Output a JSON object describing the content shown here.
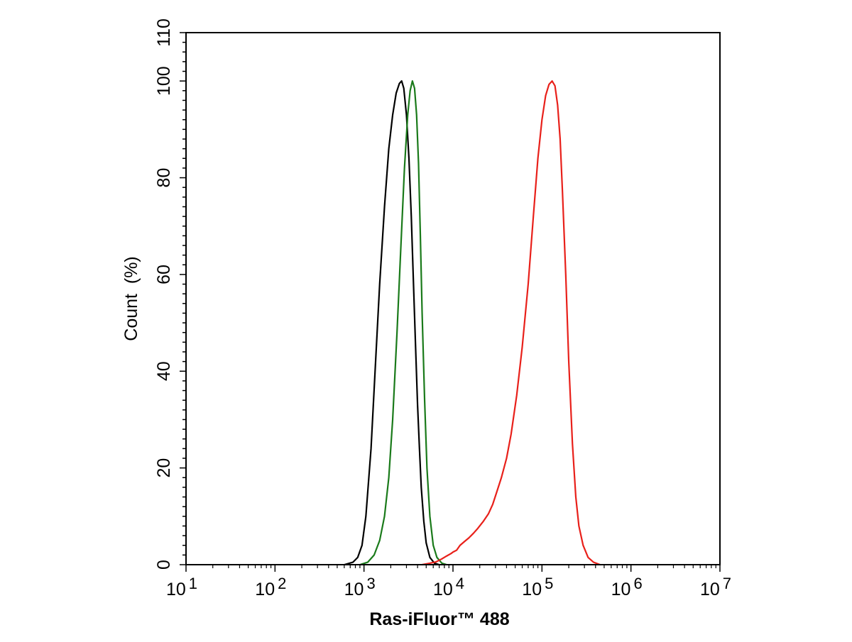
{
  "chart_data": {
    "type": "line",
    "title": "",
    "xlabel": "Ras-iFluor™ 488",
    "ylabel": "Count  (%)",
    "x_scale": "log",
    "xlim": [
      10,
      10000000
    ],
    "ylim": [
      0,
      110
    ],
    "x_ticks": [
      {
        "value": 10,
        "base": "10",
        "exp": "1"
      },
      {
        "value": 100,
        "base": "10",
        "exp": "2"
      },
      {
        "value": 1000,
        "base": "10",
        "exp": "3"
      },
      {
        "value": 10000,
        "base": "10",
        "exp": "4"
      },
      {
        "value": 100000,
        "base": "10",
        "exp": "5"
      },
      {
        "value": 1000000,
        "base": "10",
        "exp": "6"
      },
      {
        "value": 10000000,
        "base": "10",
        "exp": "7"
      }
    ],
    "y_ticks": [
      0,
      20,
      40,
      60,
      80,
      100,
      110
    ],
    "grid": false,
    "legend": "none",
    "series": [
      {
        "color": "#000000",
        "points": [
          [
            600,
            0
          ],
          [
            750,
            0.5
          ],
          [
            850,
            1.5
          ],
          [
            950,
            4
          ],
          [
            1050,
            10
          ],
          [
            1200,
            24
          ],
          [
            1350,
            42
          ],
          [
            1500,
            58
          ],
          [
            1700,
            74
          ],
          [
            1900,
            86
          ],
          [
            2100,
            93
          ],
          [
            2300,
            97.5
          ],
          [
            2500,
            99.5
          ],
          [
            2650,
            100
          ],
          [
            2800,
            98.5
          ],
          [
            3000,
            93
          ],
          [
            3200,
            84
          ],
          [
            3400,
            72
          ],
          [
            3600,
            58
          ],
          [
            3800,
            45
          ],
          [
            4000,
            33
          ],
          [
            4200,
            24
          ],
          [
            4400,
            16
          ],
          [
            4700,
            9
          ],
          [
            5000,
            4.5
          ],
          [
            5500,
            1.5
          ],
          [
            6200,
            0.3
          ],
          [
            7000,
            0
          ]
        ]
      },
      {
        "color": "#1a7a1a",
        "points": [
          [
            900,
            0
          ],
          [
            1100,
            0.5
          ],
          [
            1300,
            2
          ],
          [
            1500,
            5
          ],
          [
            1700,
            10
          ],
          [
            1900,
            18
          ],
          [
            2100,
            30
          ],
          [
            2350,
            48
          ],
          [
            2600,
            66
          ],
          [
            2850,
            82
          ],
          [
            3100,
            93
          ],
          [
            3300,
            98
          ],
          [
            3500,
            100
          ],
          [
            3700,
            98.5
          ],
          [
            3900,
            93
          ],
          [
            4100,
            83
          ],
          [
            4300,
            68
          ],
          [
            4500,
            52
          ],
          [
            4800,
            34
          ],
          [
            5100,
            20
          ],
          [
            5500,
            10
          ],
          [
            6000,
            4
          ],
          [
            6600,
            1.5
          ],
          [
            7500,
            0.3
          ],
          [
            8500,
            0
          ]
        ]
      },
      {
        "color": "#e8201a",
        "points": [
          [
            4500,
            0
          ],
          [
            5500,
            0.3
          ],
          [
            6500,
            0.6
          ],
          [
            7500,
            1.2
          ],
          [
            8500,
            1.8
          ],
          [
            9500,
            2.3
          ],
          [
            10000,
            2.6
          ],
          [
            11000,
            3
          ],
          [
            12000,
            4
          ],
          [
            13500,
            4.8
          ],
          [
            15000,
            5.5
          ],
          [
            17000,
            6.5
          ],
          [
            19000,
            7.5
          ],
          [
            22000,
            9
          ],
          [
            25000,
            10.5
          ],
          [
            28000,
            12.5
          ],
          [
            31000,
            15
          ],
          [
            35000,
            18
          ],
          [
            40000,
            22
          ],
          [
            45000,
            27
          ],
          [
            52000,
            35
          ],
          [
            60000,
            45
          ],
          [
            70000,
            58
          ],
          [
            80000,
            72
          ],
          [
            90000,
            84
          ],
          [
            100000,
            92
          ],
          [
            110000,
            97
          ],
          [
            120000,
            99.3
          ],
          [
            130000,
            100
          ],
          [
            140000,
            99
          ],
          [
            150000,
            95
          ],
          [
            160000,
            88
          ],
          [
            170000,
            77
          ],
          [
            185000,
            60
          ],
          [
            200000,
            42
          ],
          [
            220000,
            25
          ],
          [
            240000,
            14
          ],
          [
            260000,
            8
          ],
          [
            290000,
            4
          ],
          [
            330000,
            1.5
          ],
          [
            380000,
            0.5
          ],
          [
            450000,
            0
          ]
        ]
      }
    ]
  }
}
